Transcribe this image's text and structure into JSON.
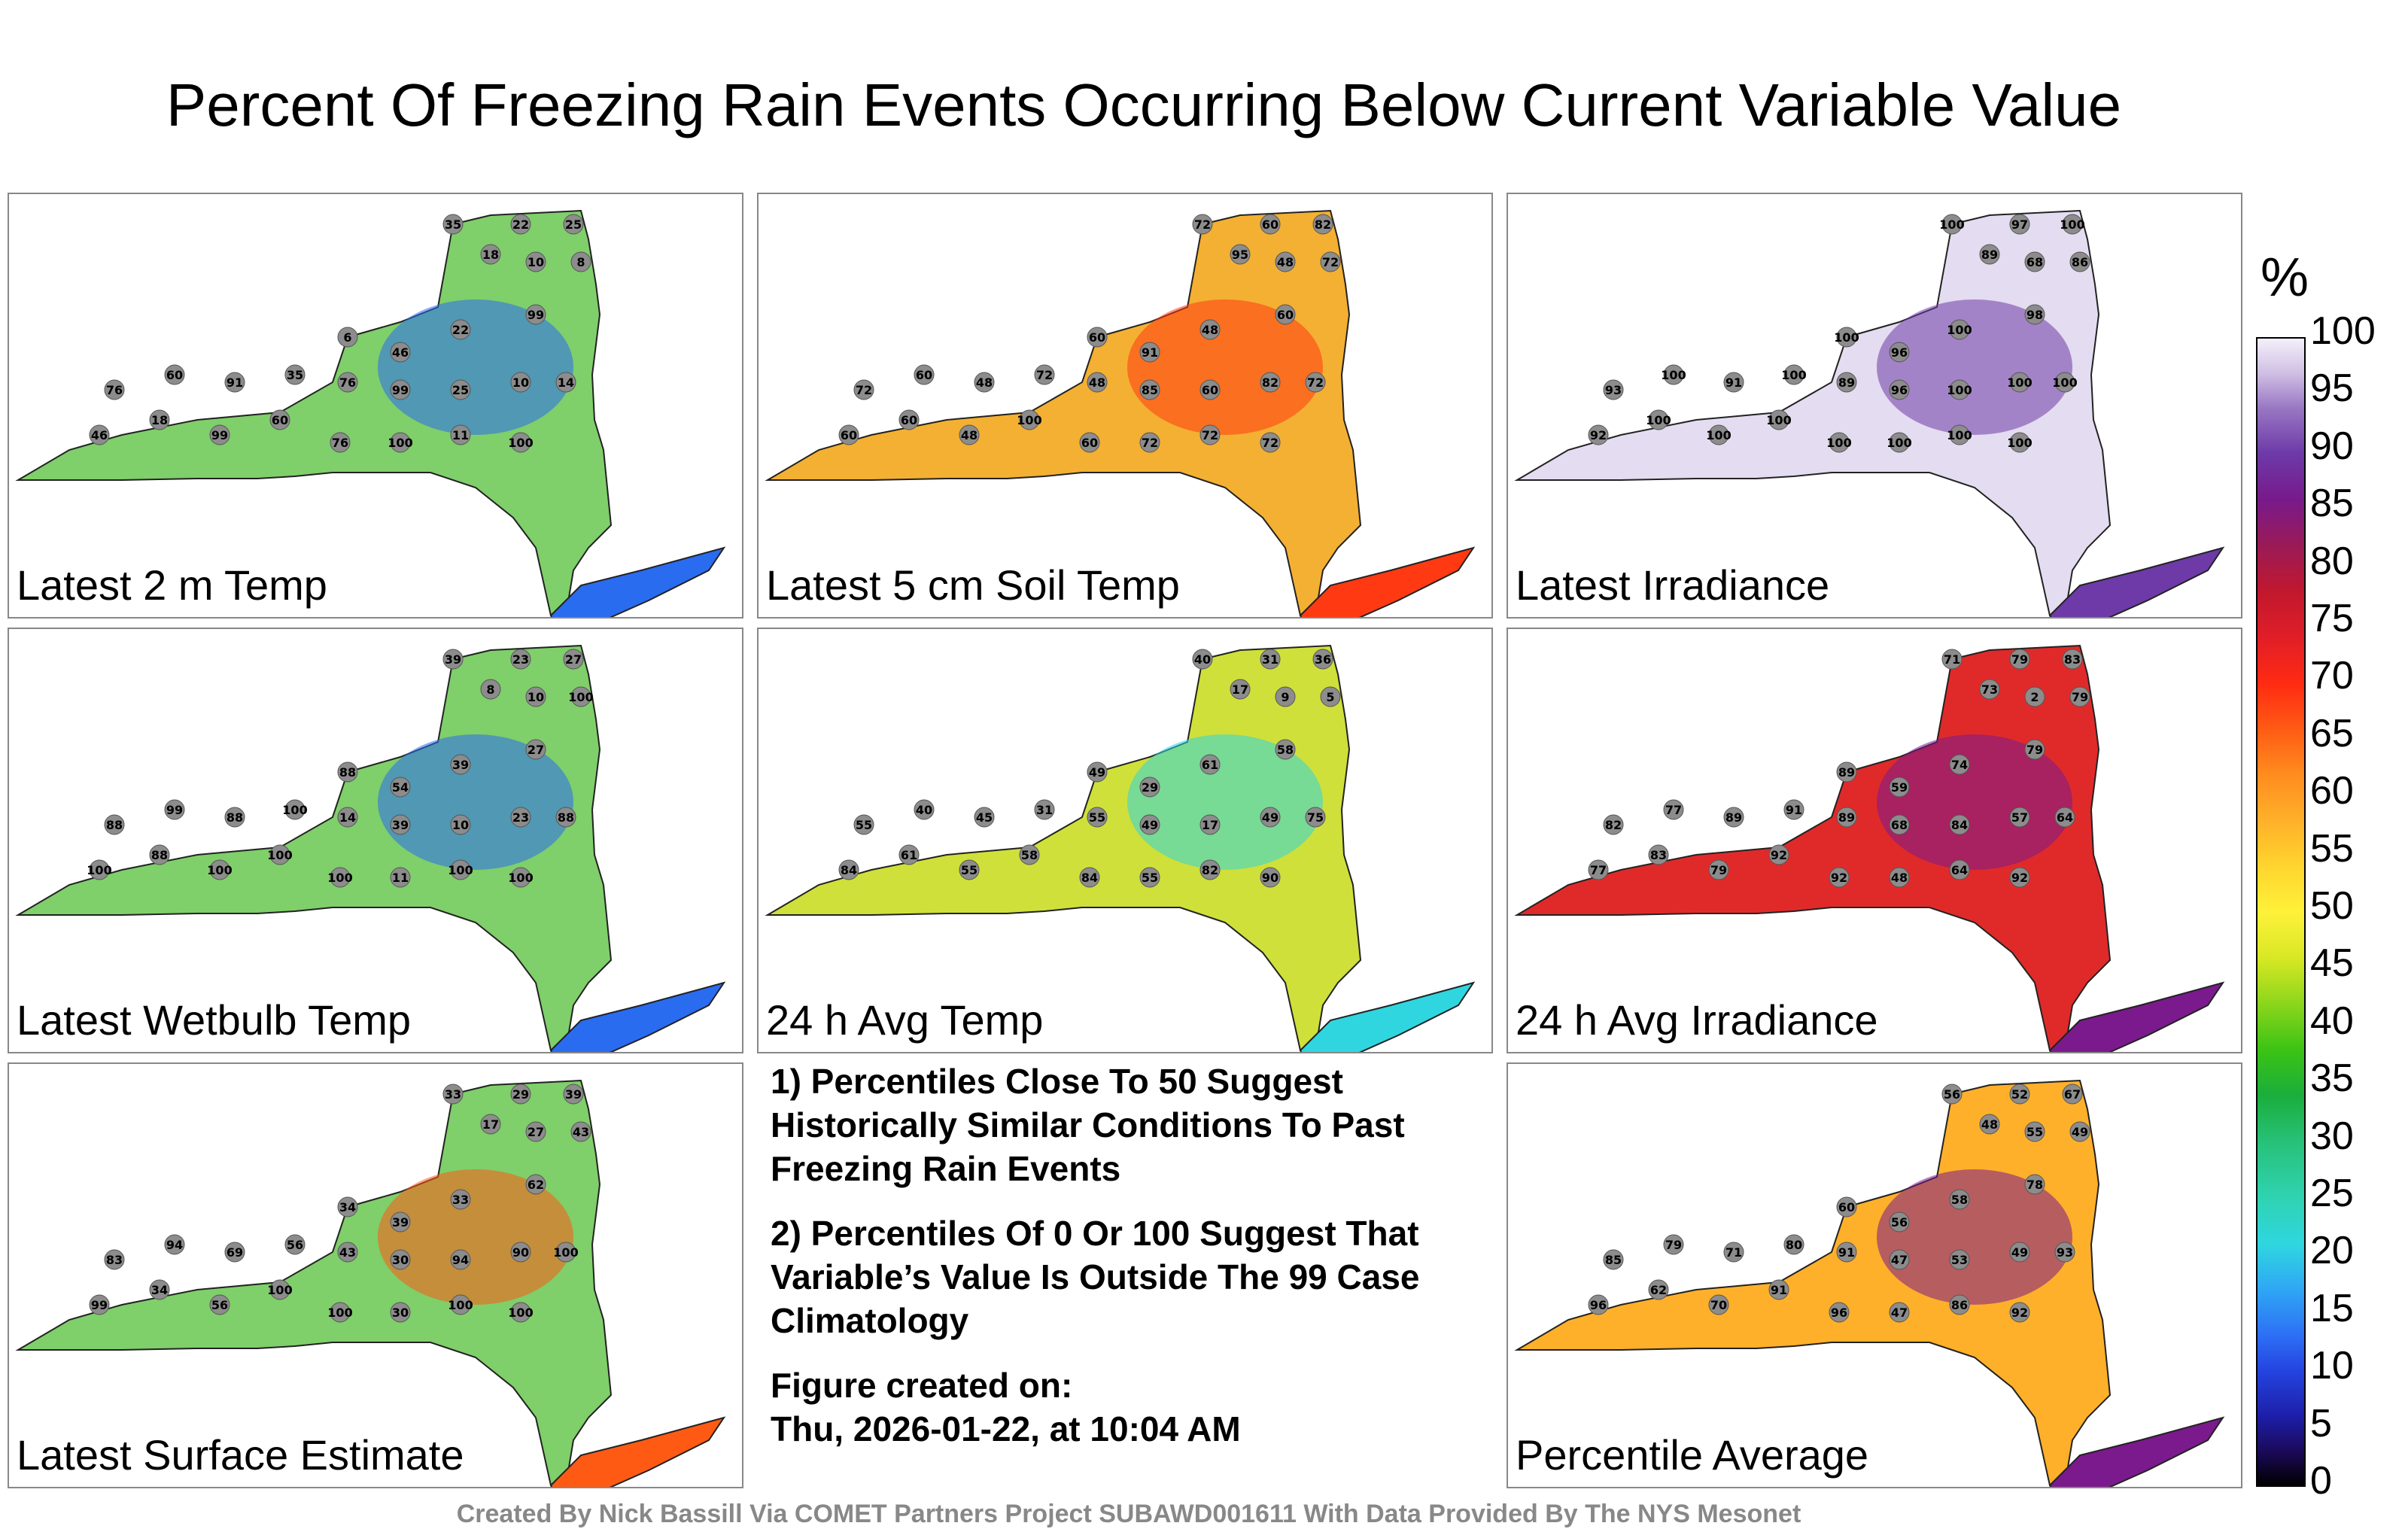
{
  "title": "Percent Of Freezing Rain Events Occurring Below Current Variable Value",
  "colorbar": {
    "unit": "%",
    "ticks": [
      "100",
      "95",
      "90",
      "85",
      "80",
      "75",
      "70",
      "65",
      "60",
      "55",
      "50",
      "45",
      "40",
      "35",
      "30",
      "25",
      "20",
      "15",
      "10",
      "5",
      "0"
    ]
  },
  "panels": [
    {
      "label": "Latest 2 m Temp",
      "fill": "#7fcf6a",
      "accent": "#2a6cf0",
      "values": [
        "35",
        "22",
        "25",
        "18",
        "10",
        "8",
        "6",
        "46",
        "22",
        "99",
        "76",
        "60",
        "91",
        "35",
        "76",
        "99",
        "25",
        "10",
        "14",
        "46",
        "18",
        "99",
        "60",
        "76",
        "100",
        "11",
        "100"
      ]
    },
    {
      "label": "Latest 5 cm Soil Temp",
      "fill": "#f4b032",
      "accent": "#ff3a12",
      "values": [
        "72",
        "60",
        "82",
        "95",
        "48",
        "72",
        "60",
        "91",
        "48",
        "60",
        "72",
        "60",
        "48",
        "72",
        "48",
        "85",
        "60",
        "82",
        "72",
        "60",
        "60",
        "48",
        "100",
        "60",
        "72",
        "72",
        "72"
      ]
    },
    {
      "label": "Latest Irradiance",
      "fill": "#e4dcf0",
      "accent": "#6d3aa8",
      "values": [
        "100",
        "97",
        "100",
        "89",
        "68",
        "86",
        "100",
        "96",
        "100",
        "98",
        "93",
        "100",
        "91",
        "100",
        "89",
        "96",
        "100",
        "100",
        "100",
        "92",
        "100",
        "100",
        "100",
        "100",
        "100",
        "100",
        "100"
      ]
    },
    {
      "label": "Latest Wetbulb Temp",
      "fill": "#7fcf6a",
      "accent": "#2a6cf0",
      "values": [
        "39",
        "23",
        "27",
        "8",
        "10",
        "100",
        "88",
        "54",
        "39",
        "27",
        "88",
        "99",
        "88",
        "100",
        "14",
        "39",
        "10",
        "23",
        "88",
        "100",
        "88",
        "100",
        "100",
        "100",
        "11",
        "100",
        "100"
      ]
    },
    {
      "label": "24 h Avg Temp",
      "fill": "#cfe03a",
      "accent": "#2fd6e0",
      "values": [
        "40",
        "31",
        "36",
        "17",
        "9",
        "5",
        "49",
        "29",
        "61",
        "58",
        "55",
        "40",
        "45",
        "31",
        "55",
        "49",
        "17",
        "49",
        "75",
        "84",
        "61",
        "55",
        "58",
        "84",
        "55",
        "82",
        "90"
      ]
    },
    {
      "label": "24 h Avg Irradiance",
      "fill": "#e02a2a",
      "accent": "#7a1a8c",
      "values": [
        "71",
        "79",
        "83",
        "73",
        "2",
        "79",
        "89",
        "59",
        "74",
        "79",
        "82",
        "77",
        "89",
        "91",
        "89",
        "68",
        "84",
        "57",
        "64",
        "77",
        "83",
        "79",
        "92",
        "92",
        "48",
        "64",
        "92"
      ]
    },
    {
      "label": "Latest Surface Estimate",
      "fill": "#7fcf6a",
      "accent": "#ff5a14",
      "values": [
        "33",
        "29",
        "39",
        "17",
        "27",
        "43",
        "34",
        "39",
        "33",
        "62",
        "83",
        "94",
        "69",
        "56",
        "43",
        "30",
        "94",
        "90",
        "100",
        "99",
        "34",
        "56",
        "100",
        "100",
        "30",
        "100",
        "100"
      ]
    },
    {
      "label": "Percentile Average",
      "fill": "#ffb02a",
      "accent": "#7a1a8c",
      "values": [
        "56",
        "52",
        "67",
        "48",
        "55",
        "49",
        "60",
        "56",
        "58",
        "78",
        "85",
        "79",
        "71",
        "80",
        "91",
        "47",
        "53",
        "49",
        "93",
        "96",
        "62",
        "70",
        "91",
        "96",
        "47",
        "86",
        "92"
      ]
    }
  ],
  "notes": {
    "note1": "1) Percentiles Close To 50 Suggest Historically Similar Conditions To Past Freezing Rain Events",
    "note2": "2) Percentiles Of 0 Or 100 Suggest That Variable’s Value Is Outside The 99 Case Climatology",
    "created_label": "Figure created on:",
    "created_value": "Thu, 2026-01-22, at 10:04 AM"
  },
  "credits": "Created By Nick Bassill Via COMET Partners Project SUBAWD001611 With Data Provided By The NYS Mesonet"
}
